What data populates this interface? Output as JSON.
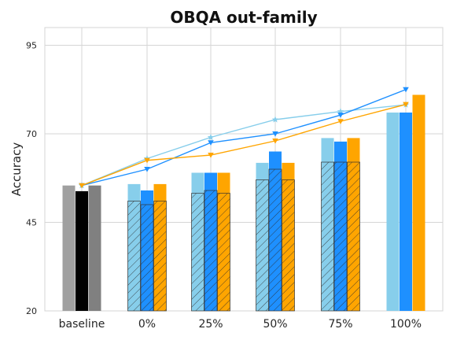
{
  "chart_data": {
    "type": "bar",
    "title": "OBQA out-family",
    "xlabel": "",
    "ylabel": "Accuracy",
    "ylim": [
      20,
      100
    ],
    "yticks": [
      20,
      45,
      70,
      95
    ],
    "grid": true,
    "legend": "none",
    "categories": [
      "baseline",
      "0%",
      "25%",
      "50%",
      "75%",
      "100%"
    ],
    "bar_series": [
      {
        "color": "#87CEEB",
        "total": [
          55.4,
          55.8,
          59.0,
          61.8,
          68.8,
          76.0
        ],
        "hatched": [
          null,
          51.0,
          53.2,
          57.0,
          62.0,
          null
        ]
      },
      {
        "color": "#1E90FF",
        "total": [
          53.8,
          54.0,
          59.0,
          65.0,
          67.8,
          76.0
        ],
        "hatched": [
          null,
          50.0,
          54.0,
          60.0,
          62.0,
          null
        ]
      },
      {
        "color": "#FFA500",
        "total": [
          55.4,
          55.8,
          59.0,
          61.8,
          68.8,
          81.0
        ],
        "hatched": [
          null,
          51.0,
          53.2,
          57.0,
          62.0,
          null
        ]
      }
    ],
    "baseline_colors": [
      "#A0A0A0",
      "#000000",
      "#808080"
    ],
    "line_series": [
      {
        "color": "#87CEEB",
        "marker": "star",
        "values": [
          55.4,
          63.0,
          69.0,
          74.0,
          76.3,
          78.2
        ]
      },
      {
        "color": "#1E90FF",
        "marker": "triangle-down",
        "values": [
          55.4,
          60.0,
          67.5,
          70.0,
          75.3,
          82.5
        ]
      },
      {
        "color": "#FFA500",
        "marker": "triangle-down",
        "values": [
          55.4,
          62.5,
          64.0,
          68.0,
          73.5,
          78.3
        ]
      }
    ]
  }
}
